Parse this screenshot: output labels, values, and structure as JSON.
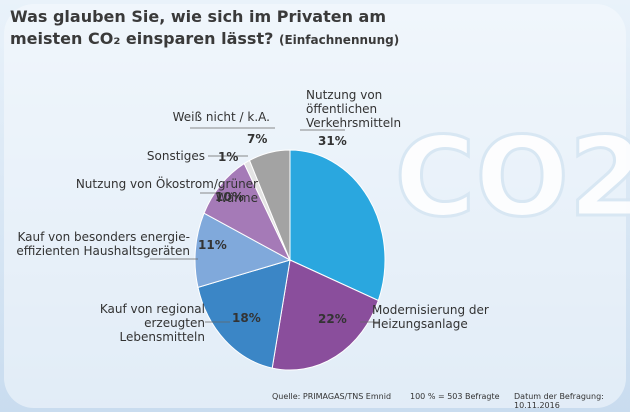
{
  "chart_data": {
    "type": "pie",
    "title": "Was glauben Sie, wie sich im  Privaten am meisten CO₂ einsparen lässt?",
    "subtitle": "(Einfachnennung)",
    "categories": [
      "Nutzung von öffentlichen Verkehrsmitteln",
      "Modernisierung der Heizungsanlage",
      "Kauf von regional erzeugten Lebensmitteln",
      "Kauf von besonders energie­effizienten Haushaltsgeräten",
      "Nutzung von Ökostrom/grüner Wärme",
      "Sonstiges",
      "Weiß nicht / k.A."
    ],
    "values": [
      31,
      22,
      18,
      11,
      10,
      1,
      7
    ],
    "value_labels": [
      "31%",
      "22%",
      "18%",
      "11%",
      "10%",
      "1%",
      "7%"
    ],
    "colors": [
      "#2aa7df",
      "#8a4e9c",
      "#3b86c6",
      "#80a9db",
      "#a57ab7",
      "#e4e4e4",
      "#a3a3a3"
    ],
    "illustration_text": "CO2",
    "footer": [
      "Quelle: PRIMAGAS/TNS Emnid",
      "100 % = 503 Befragte",
      "Datum der Befragung: 10.11.2016"
    ]
  }
}
